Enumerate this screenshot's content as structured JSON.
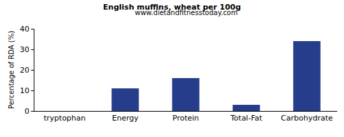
{
  "chart_data": {
    "type": "bar",
    "title": "English muffins, wheat per 100g",
    "subtitle": "www.dietandfitnesstoday.com",
    "y_label": "Percentage of RDA (%)",
    "categories": [
      "tryptophan",
      "Energy",
      "Protein",
      "Total-Fat",
      "Carbohydrate"
    ],
    "values": [
      0,
      11,
      16,
      3,
      34
    ],
    "color": "#263d8c",
    "ylim": [
      0,
      40
    ],
    "yticks": [
      0,
      10,
      20,
      30,
      40
    ],
    "grid": false
  }
}
